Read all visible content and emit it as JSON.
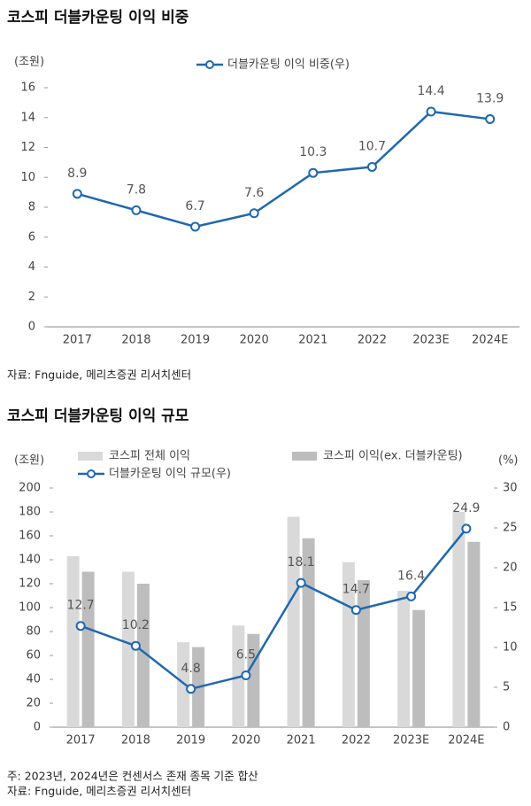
{
  "chart_data": [
    {
      "type": "line",
      "title": "코스피 더블카운팅 이익 비중",
      "y_unit": "(조원)",
      "categories": [
        "2017",
        "2018",
        "2019",
        "2020",
        "2021",
        "2022",
        "2023E",
        "2024E"
      ],
      "series": [
        {
          "name": "더블카운팅 이익 비중(우)",
          "color": "#1f68b0",
          "type": "line",
          "values": [
            8.9,
            7.8,
            6.7,
            7.6,
            10.3,
            10.7,
            14.4,
            13.9
          ]
        }
      ],
      "ylim": [
        0,
        16
      ],
      "yticks": [
        0,
        2,
        4,
        6,
        8,
        10,
        12,
        14,
        16
      ],
      "source": "자료: Fnguide, 메리츠증권 리서치센터"
    },
    {
      "type": "combo",
      "title": "코스피 더블카운팅 이익 규모",
      "y_unit": "(조원)",
      "y2_unit": "(%)",
      "categories": [
        "2017",
        "2018",
        "2019",
        "2020",
        "2021",
        "2022",
        "2023E",
        "2024E"
      ],
      "series": [
        {
          "name": "코스피 전체 이익",
          "color": "#d9d9d9",
          "type": "bar",
          "values": [
            143,
            130,
            71,
            85,
            176,
            138,
            114,
            180
          ]
        },
        {
          "name": "코스피 이익(ex. 더블카운팅)",
          "color": "#bdbdbd",
          "type": "bar",
          "values": [
            130,
            120,
            67,
            78,
            158,
            123,
            98,
            155
          ]
        },
        {
          "name": "더블카운팅 이익 규모(우)",
          "color": "#1f68b0",
          "type": "line",
          "axis": "y2",
          "values": [
            12.7,
            10.2,
            4.8,
            6.5,
            18.1,
            14.7,
            16.4,
            24.9
          ]
        }
      ],
      "ylim": [
        0,
        200
      ],
      "yticks": [
        0,
        20,
        40,
        60,
        80,
        100,
        120,
        140,
        160,
        180,
        200
      ],
      "y2lim": [
        0,
        30
      ],
      "y2ticks": [
        0,
        5,
        10,
        15,
        20,
        25,
        30
      ],
      "note": "주: 2023년, 2024년은 컨센서스 존재 종목 기준 합산",
      "source": "자료: Fnguide, 메리츠증권 리서치센터"
    }
  ]
}
